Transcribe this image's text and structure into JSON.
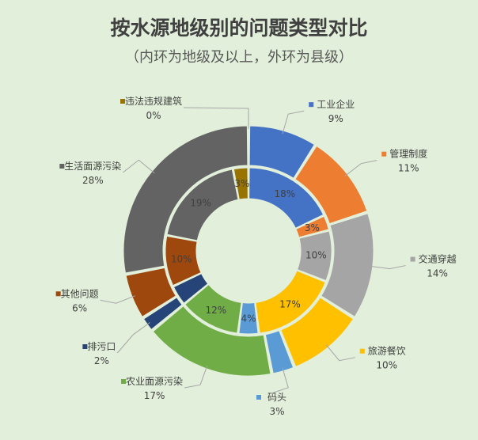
{
  "chart_data": {
    "type": "donut",
    "title": "按水源地级别的问题类型对比",
    "subtitle": "（内环为地级及以上，外环为县级）",
    "categories": [
      "工业企业",
      "管理制度",
      "交通穿越",
      "旅游餐饮",
      "码头",
      "农业面源污染",
      "排污口",
      "其他问题",
      "生活面源污染",
      "违法违规建筑"
    ],
    "colors": [
      "#4472c4",
      "#ed7d31",
      "#a5a5a5",
      "#ffc000",
      "#5b9bd5",
      "#70ad47",
      "#264478",
      "#9e480e",
      "#636363",
      "#997300"
    ],
    "series": [
      {
        "name": "地级及以上",
        "ring": "inner",
        "values": [
          18,
          3,
          10,
          17,
          4,
          12,
          4,
          10,
          19,
          3
        ]
      },
      {
        "name": "县级",
        "ring": "outer",
        "values": [
          9,
          11,
          14,
          10,
          3,
          17,
          2,
          6,
          28,
          0
        ]
      }
    ],
    "outer_labels": [
      "9%",
      "11%",
      "14%",
      "10%",
      "3%",
      "17%",
      "2%",
      "6%",
      "28%",
      "0%"
    ],
    "inner_labels": [
      "18%",
      "3%",
      "10%",
      "17%",
      "4%",
      "12%",
      "",
      "10%",
      "19%",
      "3%"
    ]
  }
}
